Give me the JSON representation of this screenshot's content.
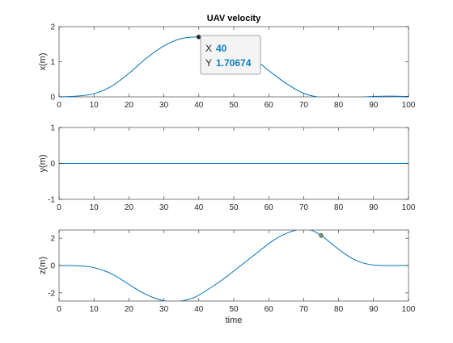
{
  "chart_data": [
    {
      "type": "line",
      "title": "UAV velocity",
      "xlabel": "",
      "ylabel": "x(m)",
      "xlim": [
        0,
        100
      ],
      "ylim": [
        0,
        2
      ],
      "xticks": [
        0,
        10,
        20,
        30,
        40,
        50,
        60,
        70,
        80,
        90,
        100
      ],
      "yticks": [
        0,
        1,
        2
      ],
      "grid": false,
      "color": "#0072BD",
      "series": [
        {
          "x": [
            0,
            5,
            10,
            15,
            20,
            25,
            30,
            35,
            40,
            45,
            50,
            55,
            60,
            65,
            70,
            75,
            80,
            85,
            90,
            95,
            100
          ],
          "y": [
            0.0,
            0.02,
            0.09,
            0.3,
            0.67,
            1.1,
            1.45,
            1.66,
            1.707,
            1.67,
            1.5,
            1.15,
            0.75,
            0.38,
            0.1,
            -0.02,
            -0.05,
            -0.02,
            0.01,
            0.02,
            0.01
          ]
        }
      ],
      "marker": {
        "x": 40,
        "y": 1.70674
      },
      "datatip": {
        "x_label": "X",
        "x_value": "40",
        "y_label": "Y",
        "y_value": "1.70674"
      }
    },
    {
      "type": "line",
      "title": "",
      "xlabel": "",
      "ylabel": "y(m)",
      "xlim": [
        0,
        100
      ],
      "ylim": [
        -1,
        1
      ],
      "xticks": [
        0,
        10,
        20,
        30,
        40,
        50,
        60,
        70,
        80,
        90,
        100
      ],
      "yticks": [
        -1,
        0,
        1
      ],
      "grid": false,
      "color": "#0072BD",
      "series": [
        {
          "x": [
            0,
            100
          ],
          "y": [
            0,
            0
          ]
        }
      ]
    },
    {
      "type": "line",
      "title": "",
      "xlabel": "time",
      "ylabel": "z(m)",
      "xlim": [
        0,
        100
      ],
      "ylim": [
        -2.6,
        2.6
      ],
      "xticks": [
        0,
        10,
        20,
        30,
        40,
        50,
        60,
        70,
        80,
        90,
        100
      ],
      "yticks": [
        -2,
        0,
        2
      ],
      "grid": false,
      "color": "#0072BD",
      "series": [
        {
          "x": [
            0,
            3,
            6,
            9,
            12,
            15,
            18,
            21,
            24,
            27,
            30,
            33,
            36,
            39,
            42,
            45,
            48,
            51,
            54,
            57,
            60,
            63,
            66,
            69,
            72,
            75,
            78,
            81,
            84,
            87,
            90,
            93,
            96,
            100
          ],
          "y": [
            0.0,
            0.0,
            -0.03,
            -0.1,
            -0.3,
            -0.6,
            -1.05,
            -1.55,
            -2.0,
            -2.35,
            -2.58,
            -2.65,
            -2.55,
            -2.3,
            -1.85,
            -1.35,
            -0.8,
            -0.2,
            0.4,
            1.0,
            1.6,
            2.1,
            2.45,
            2.65,
            2.6,
            2.2,
            1.6,
            1.0,
            0.5,
            0.18,
            0.04,
            0.0,
            0.0,
            0.0
          ]
        }
      ],
      "marker": {
        "x": 75,
        "y": 2.2
      }
    }
  ]
}
